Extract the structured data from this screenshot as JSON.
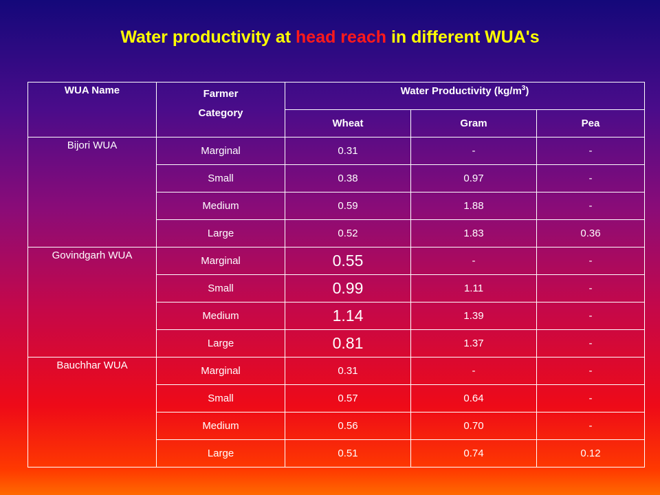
{
  "title": {
    "part1": "Water productivity at ",
    "highlight": "head reach",
    "part2": " in different WUA's"
  },
  "headers": {
    "wua_name": "WUA Name",
    "farmer_line1": "Farmer",
    "farmer_line2": "Category",
    "wp_main": "Water Productivity (kg/m",
    "wp_sup": "3",
    "wp_close": ")",
    "wheat": "Wheat",
    "gram": "Gram",
    "pea": "Pea"
  },
  "groups": [
    {
      "name": "Bijori WUA",
      "rows": [
        {
          "cat": "Marginal",
          "wheat": "0.31",
          "gram": "-",
          "pea": "-"
        },
        {
          "cat": "Small",
          "wheat": "0.38",
          "gram": "0.97",
          "pea": "-"
        },
        {
          "cat": "Medium",
          "wheat": "0.59",
          "gram": "1.88",
          "pea": "-"
        },
        {
          "cat": "Large",
          "wheat": "0.52",
          "gram": "1.83",
          "pea": "0.36"
        }
      ]
    },
    {
      "name": "Govindgarh WUA",
      "rows": [
        {
          "cat": "Marginal",
          "wheat": "0.55",
          "gram": "-",
          "pea": "-"
        },
        {
          "cat": "Small",
          "wheat": "0.99",
          "gram": "1.11",
          "pea": "-"
        },
        {
          "cat": "Medium",
          "wheat": "1.14",
          "gram": "1.39",
          "pea": "-"
        },
        {
          "cat": "Large",
          "wheat": "0.81",
          "gram": "1.37",
          "pea": "-"
        }
      ]
    },
    {
      "name": "Bauchhar WUA",
      "rows": [
        {
          "cat": "Marginal",
          "wheat": "0.31",
          "gram": "-",
          "pea": "-"
        },
        {
          "cat": "Small",
          "wheat": "0.57",
          "gram": "0.64",
          "pea": "-"
        },
        {
          "cat": "Medium",
          "wheat": "0.56",
          "gram": "0.70",
          "pea": "-"
        },
        {
          "cat": "Large",
          "wheat": "0.51",
          "gram": "0.74",
          "pea": "0.12"
        }
      ]
    }
  ],
  "colors": {
    "title": "#ffff00",
    "highlight": "#ff1a1a",
    "text": "#ffffff",
    "grid": "#ffffff"
  }
}
